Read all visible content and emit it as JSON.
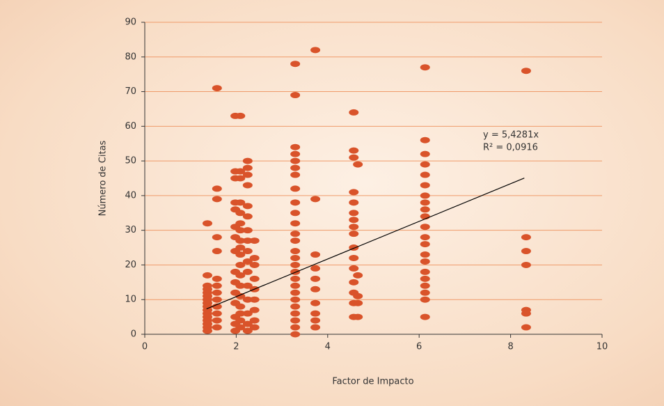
{
  "chart_data": {
    "type": "scatter",
    "xlabel": "Factor de Impacto",
    "ylabel": "Número de Citas",
    "xlim": [
      0,
      10
    ],
    "ylim": [
      0,
      90
    ],
    "xticks": [
      0,
      2,
      4,
      6,
      8,
      10
    ],
    "yticks": [
      0,
      10,
      20,
      30,
      40,
      50,
      60,
      70,
      80,
      90
    ],
    "grid": true,
    "color": "#d9532a",
    "x": [
      1.37,
      1.37,
      1.37,
      1.37,
      1.37,
      1.37,
      1.37,
      1.37,
      1.37,
      1.37,
      1.37,
      1.37,
      1.37,
      1.37,
      1.37,
      1.37,
      1.58,
      1.58,
      1.58,
      1.58,
      1.58,
      1.58,
      1.58,
      1.58,
      1.58,
      1.58,
      1.58,
      1.58,
      1.58,
      1.98,
      1.98,
      1.98,
      1.98,
      1.98,
      1.98,
      1.98,
      1.98,
      1.98,
      1.98,
      1.98,
      1.98,
      1.98,
      1.98,
      1.98,
      2.09,
      2.09,
      2.09,
      2.09,
      2.09,
      2.09,
      2.09,
      2.09,
      2.09,
      2.09,
      2.09,
      2.09,
      2.09,
      2.09,
      2.09,
      2.09,
      2.09,
      2.09,
      2.25,
      2.25,
      2.25,
      2.25,
      2.25,
      2.25,
      2.25,
      2.25,
      2.25,
      2.25,
      2.25,
      2.25,
      2.25,
      2.25,
      2.25,
      2.25,
      2.4,
      2.4,
      2.4,
      2.4,
      2.4,
      2.4,
      2.4,
      2.4,
      2.4,
      3.29,
      3.29,
      3.29,
      3.29,
      3.29,
      3.29,
      3.29,
      3.29,
      3.29,
      3.29,
      3.29,
      3.29,
      3.29,
      3.29,
      3.29,
      3.29,
      3.29,
      3.29,
      3.29,
      3.29,
      3.29,
      3.29,
      3.29,
      3.29,
      3.29,
      3.29,
      3.73,
      3.73,
      3.73,
      3.73,
      3.73,
      3.73,
      3.73,
      3.73,
      3.73,
      3.73,
      4.57,
      4.57,
      4.57,
      4.57,
      4.57,
      4.57,
      4.57,
      4.57,
      4.57,
      4.57,
      4.57,
      4.57,
      4.57,
      4.57,
      4.57,
      4.57,
      4.66,
      4.66,
      4.66,
      4.66,
      4.66,
      6.13,
      6.13,
      6.13,
      6.13,
      6.13,
      6.13,
      6.13,
      6.13,
      6.13,
      6.13,
      6.13,
      6.13,
      6.13,
      6.13,
      6.13,
      6.13,
      6.13,
      6.13,
      6.13,
      6.13,
      6.13,
      8.34,
      8.34,
      8.34,
      8.34,
      8.34,
      8.34,
      8.34
    ],
    "values": [
      32,
      17,
      14,
      13,
      12,
      11,
      10,
      9,
      8,
      7,
      6,
      5,
      4,
      3,
      2,
      1,
      71,
      42,
      39,
      28,
      24,
      16,
      14,
      12,
      10,
      8,
      6,
      4,
      2,
      63,
      47,
      45,
      38,
      36,
      31,
      28,
      24,
      18,
      15,
      12,
      9,
      5,
      3,
      1,
      63,
      47,
      45,
      38,
      35,
      32,
      30,
      27,
      25,
      23,
      20,
      17,
      14,
      11,
      8,
      6,
      4,
      2,
      50,
      48,
      46,
      43,
      37,
      34,
      30,
      27,
      24,
      21,
      18,
      14,
      10,
      6,
      3,
      1,
      27,
      22,
      20,
      16,
      13,
      10,
      7,
      4,
      2,
      78,
      69,
      54,
      52,
      50,
      48,
      46,
      42,
      38,
      35,
      32,
      29,
      27,
      24,
      22,
      20,
      18,
      16,
      14,
      12,
      10,
      8,
      6,
      4,
      2,
      0,
      82,
      39,
      23,
      19,
      16,
      13,
      9,
      6,
      4,
      2,
      64,
      53,
      51,
      41,
      38,
      35,
      33,
      31,
      29,
      25,
      22,
      19,
      15,
      12,
      9,
      5,
      49,
      17,
      11,
      9,
      5,
      77,
      56,
      52,
      49,
      46,
      43,
      40,
      38,
      36,
      34,
      31,
      28,
      26,
      23,
      21,
      18,
      16,
      14,
      12,
      10,
      5,
      76,
      28,
      24,
      20,
      7,
      6,
      2
    ],
    "trendline": {
      "slope": 5.4281,
      "x": [
        1.35,
        8.3
      ],
      "color": "#000000"
    },
    "annotations": [
      "y = 5,4281x",
      "R² = 0,0916"
    ]
  }
}
